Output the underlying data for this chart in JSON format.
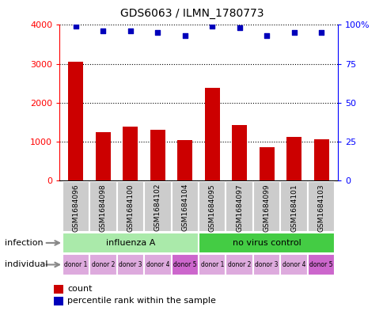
{
  "title": "GDS6063 / ILMN_1780773",
  "samples": [
    "GSM1684096",
    "GSM1684098",
    "GSM1684100",
    "GSM1684102",
    "GSM1684104",
    "GSM1684095",
    "GSM1684097",
    "GSM1684099",
    "GSM1684101",
    "GSM1684103"
  ],
  "counts": [
    3050,
    1250,
    1380,
    1310,
    1040,
    2390,
    1430,
    850,
    1120,
    1060
  ],
  "percentile_ranks": [
    99,
    96,
    96,
    95,
    93,
    99,
    98,
    93,
    95,
    95
  ],
  "ylim_left": [
    0,
    4000
  ],
  "ylim_right": [
    0,
    100
  ],
  "yticks_left": [
    0,
    1000,
    2000,
    3000,
    4000
  ],
  "yticks_right": [
    0,
    25,
    50,
    75,
    100
  ],
  "infection_groups": [
    {
      "label": "influenza A",
      "start": 0,
      "end": 5,
      "color": "#aaeaaa"
    },
    {
      "label": "no virus control",
      "start": 5,
      "end": 10,
      "color": "#44cc44"
    }
  ],
  "individual_labels": [
    "donor 1",
    "donor 2",
    "donor 3",
    "donor 4",
    "donor 5",
    "donor 1",
    "donor 2",
    "donor 3",
    "donor 4",
    "donor 5"
  ],
  "individual_colors": [
    "#ddaadd",
    "#ddaadd",
    "#ddaadd",
    "#ddaadd",
    "#cc66cc",
    "#ddaadd",
    "#ddaadd",
    "#ddaadd",
    "#ddaadd",
    "#cc66cc"
  ],
  "bar_color": "#cc0000",
  "dot_color": "#0000bb",
  "label_infection": "infection",
  "label_individual": "individual",
  "legend_count_label": "count",
  "legend_percentile_label": "percentile rank within the sample",
  "background_color": "#ffffff",
  "sample_box_color": "#cccccc"
}
